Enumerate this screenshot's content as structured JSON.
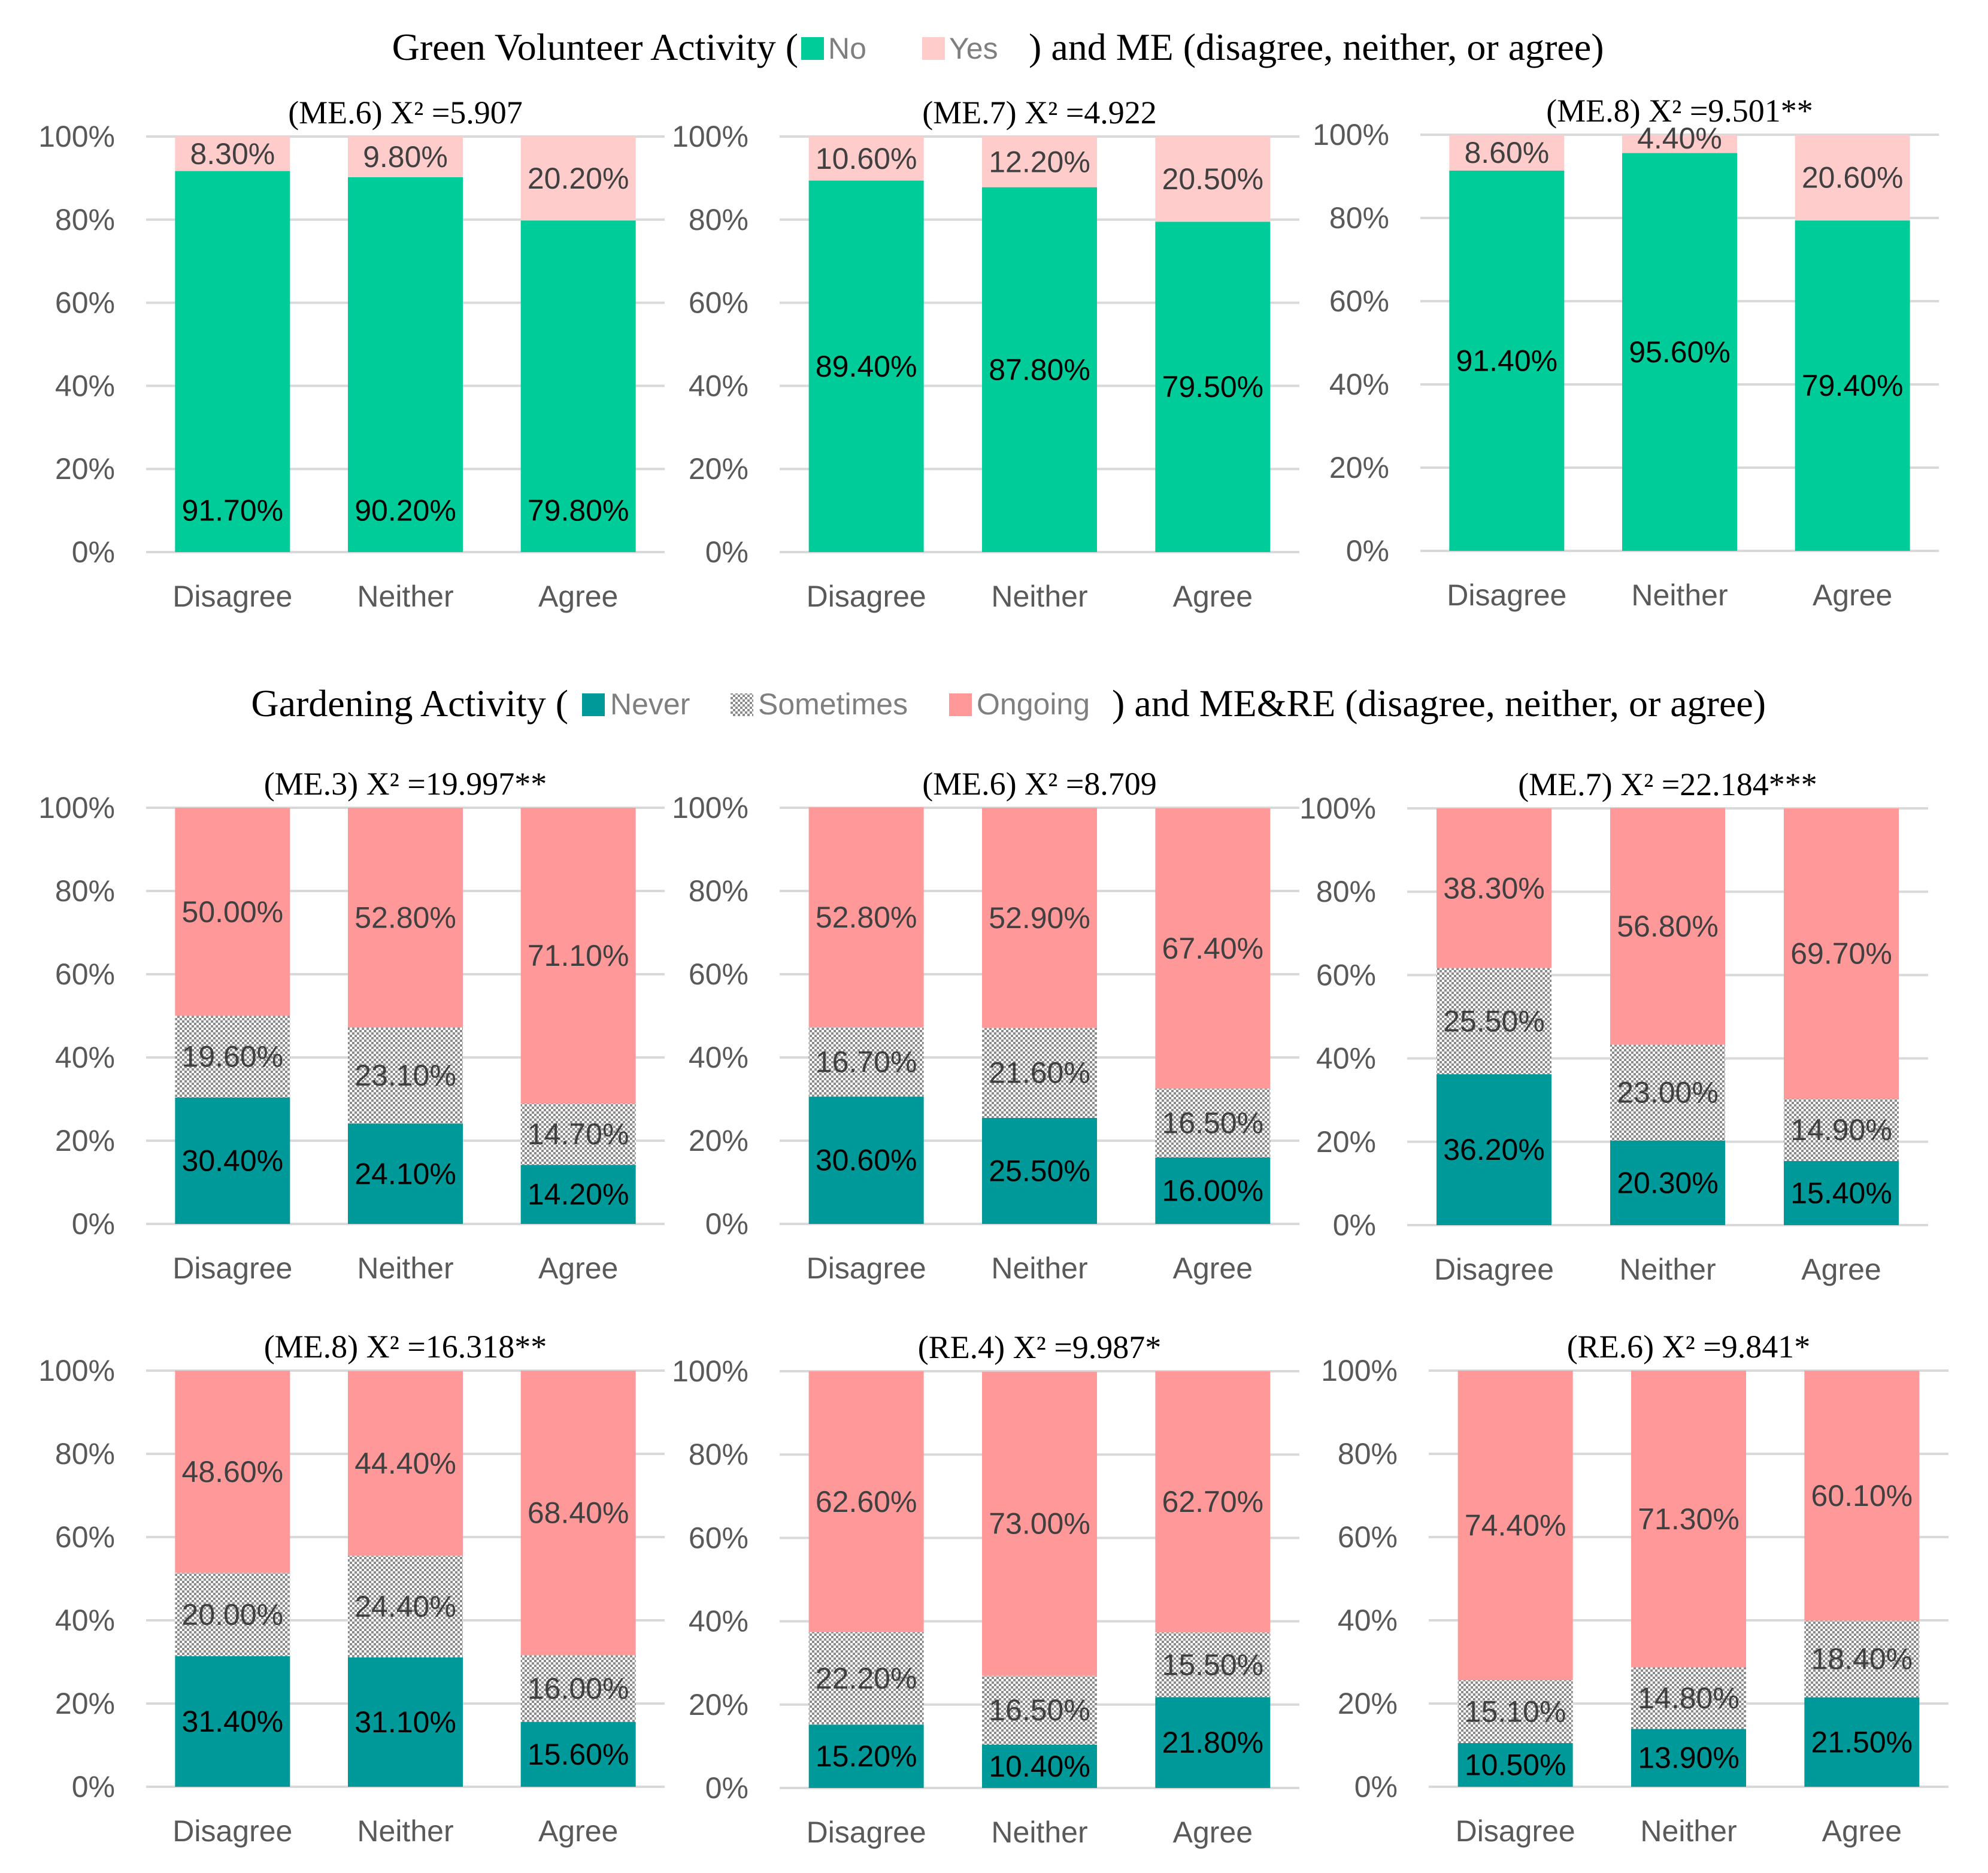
{
  "colors": {
    "no": "#00cc99",
    "yes": "#ffcccc",
    "never": "#009999",
    "sometimes_fg": "#8c8c8c",
    "sometimes_bg": "#ffffff",
    "ongoing": "#ff9999",
    "grid": "#d9d9d9",
    "axis_text": "#595959",
    "label_dark": "#000000",
    "label_grey": "#404040"
  },
  "sections": [
    {
      "title_prefix": "Green Volunteer Activity (",
      "title_suffix": ") and ME (disagree, neither, or agree)",
      "legend": [
        {
          "key": "no",
          "label": "No"
        },
        {
          "key": "yes",
          "label": "Yes"
        }
      ]
    },
    {
      "title_prefix": "Gardening Activity (",
      "title_suffix": ") and ME&RE (disagree, neither, or agree)",
      "legend": [
        {
          "key": "never",
          "label": "Never"
        },
        {
          "key": "sometimes",
          "label": "Sometimes"
        },
        {
          "key": "ongoing",
          "label": "Ongoing"
        }
      ]
    }
  ],
  "chart_data": [
    {
      "type": "bar",
      "stacked": true,
      "section": 0,
      "title": "(ME.6) X² =5.907",
      "categories": [
        "Disagree",
        "Neither",
        "Agree"
      ],
      "yticks": [
        "0%",
        "20%",
        "40%",
        "60%",
        "80%",
        "100%"
      ],
      "ylim": [
        0,
        100
      ],
      "series": [
        {
          "name": "No",
          "key": "no",
          "values": [
            91.7,
            90.2,
            79.8
          ],
          "labels": [
            "91.70%",
            "90.20%",
            "79.80%"
          ]
        },
        {
          "name": "Yes",
          "key": "yes",
          "values": [
            8.3,
            9.8,
            20.2
          ],
          "labels": [
            "8.30%",
            "9.80%",
            "20.20%"
          ]
        }
      ]
    },
    {
      "type": "bar",
      "stacked": true,
      "section": 0,
      "title": "(ME.7) X² =4.922",
      "categories": [
        "Disagree",
        "Neither",
        "Agree"
      ],
      "yticks": [
        "0%",
        "20%",
        "40%",
        "60%",
        "80%",
        "100%"
      ],
      "ylim": [
        0,
        100
      ],
      "series": [
        {
          "name": "No",
          "key": "no",
          "values": [
            89.4,
            87.8,
            79.5
          ],
          "labels": [
            "89.40%",
            "87.80%",
            "79.50%"
          ]
        },
        {
          "name": "Yes",
          "key": "yes",
          "values": [
            10.6,
            12.2,
            20.5
          ],
          "labels": [
            "10.60%",
            "12.20%",
            "20.50%"
          ]
        }
      ]
    },
    {
      "type": "bar",
      "stacked": true,
      "section": 0,
      "title": "(ME.8) X² =9.501**",
      "categories": [
        "Disagree",
        "Neither",
        "Agree"
      ],
      "yticks": [
        "0%",
        "20%",
        "40%",
        "60%",
        "80%",
        "100%"
      ],
      "ylim": [
        0,
        100
      ],
      "series": [
        {
          "name": "No",
          "key": "no",
          "values": [
            91.4,
            95.6,
            79.4
          ],
          "labels": [
            "91.40%",
            "95.60%",
            "79.40%"
          ]
        },
        {
          "name": "Yes",
          "key": "yes",
          "values": [
            8.6,
            4.4,
            20.6
          ],
          "labels": [
            "8.60%",
            "4.40%",
            "20.60%"
          ]
        }
      ]
    },
    {
      "type": "bar",
      "stacked": true,
      "section": 1,
      "title": "(ME.3) X² =19.997**",
      "categories": [
        "Disagree",
        "Neither",
        "Agree"
      ],
      "yticks": [
        "0%",
        "20%",
        "40%",
        "60%",
        "80%",
        "100%"
      ],
      "ylim": [
        0,
        100
      ],
      "series": [
        {
          "name": "Never",
          "key": "never",
          "values": [
            30.4,
            24.1,
            14.2
          ],
          "labels": [
            "30.40%",
            "24.10%",
            "14.20%"
          ]
        },
        {
          "name": "Sometimes",
          "key": "sometimes",
          "values": [
            19.6,
            23.1,
            14.7
          ],
          "labels": [
            "19.60%",
            "23.10%",
            "14.70%"
          ]
        },
        {
          "name": "Ongoing",
          "key": "ongoing",
          "values": [
            50.0,
            52.8,
            71.1
          ],
          "labels": [
            "50.00%",
            "52.80%",
            "71.10%"
          ]
        }
      ]
    },
    {
      "type": "bar",
      "stacked": true,
      "section": 1,
      "title": "(ME.6) X² =8.709",
      "categories": [
        "Disagree",
        "Neither",
        "Agree"
      ],
      "yticks": [
        "0%",
        "20%",
        "40%",
        "60%",
        "80%",
        "100%"
      ],
      "ylim": [
        0,
        100
      ],
      "series": [
        {
          "name": "Never",
          "key": "never",
          "values": [
            30.6,
            25.5,
            16.0
          ],
          "labels": [
            "30.60%",
            "25.50%",
            "16.00%"
          ]
        },
        {
          "name": "Sometimes",
          "key": "sometimes",
          "values": [
            16.7,
            21.6,
            16.5
          ],
          "labels": [
            "16.70%",
            "21.60%",
            "16.50%"
          ]
        },
        {
          "name": "Ongoing",
          "key": "ongoing",
          "values": [
            52.8,
            52.9,
            67.4
          ],
          "labels": [
            "52.80%",
            "52.90%",
            "67.40%"
          ]
        }
      ]
    },
    {
      "type": "bar",
      "stacked": true,
      "section": 1,
      "title": "(ME.7) X² =22.184***",
      "categories": [
        "Disagree",
        "Neither",
        "Agree"
      ],
      "yticks": [
        "0%",
        "20%",
        "40%",
        "60%",
        "80%",
        "100%"
      ],
      "ylim": [
        0,
        100
      ],
      "series": [
        {
          "name": "Never",
          "key": "never",
          "values": [
            36.2,
            20.3,
            15.4
          ],
          "labels": [
            "36.20%",
            "20.30%",
            "15.40%"
          ]
        },
        {
          "name": "Sometimes",
          "key": "sometimes",
          "values": [
            25.5,
            23.0,
            14.9
          ],
          "labels": [
            "25.50%",
            "23.00%",
            "14.90%"
          ]
        },
        {
          "name": "Ongoing",
          "key": "ongoing",
          "values": [
            38.3,
            56.8,
            69.7
          ],
          "labels": [
            "38.30%",
            "56.80%",
            "69.70%"
          ]
        }
      ]
    },
    {
      "type": "bar",
      "stacked": true,
      "section": 1,
      "title": "(ME.8) X² =16.318**",
      "categories": [
        "Disagree",
        "Neither",
        "Agree"
      ],
      "yticks": [
        "0%",
        "20%",
        "40%",
        "60%",
        "80%",
        "100%"
      ],
      "ylim": [
        0,
        100
      ],
      "series": [
        {
          "name": "Never",
          "key": "never",
          "values": [
            31.4,
            31.1,
            15.6
          ],
          "labels": [
            "31.40%",
            "31.10%",
            "15.60%"
          ]
        },
        {
          "name": "Sometimes",
          "key": "sometimes",
          "values": [
            20.0,
            24.4,
            16.0
          ],
          "labels": [
            "20.00%",
            "24.40%",
            "16.00%"
          ]
        },
        {
          "name": "Ongoing",
          "key": "ongoing",
          "values": [
            48.6,
            44.4,
            68.4
          ],
          "labels": [
            "48.60%",
            "44.40%",
            "68.40%"
          ]
        }
      ]
    },
    {
      "type": "bar",
      "stacked": true,
      "section": 1,
      "title": "(RE.4) X² =9.987*",
      "categories": [
        "Disagree",
        "Neither",
        "Agree"
      ],
      "yticks": [
        "0%",
        "20%",
        "40%",
        "60%",
        "80%",
        "100%"
      ],
      "ylim": [
        0,
        100
      ],
      "series": [
        {
          "name": "Never",
          "key": "never",
          "values": [
            15.2,
            10.4,
            21.8
          ],
          "labels": [
            "15.20%",
            "10.40%",
            "21.80%"
          ]
        },
        {
          "name": "Sometimes",
          "key": "sometimes",
          "values": [
            22.2,
            16.5,
            15.5
          ],
          "labels": [
            "22.20%",
            "16.50%",
            "15.50%"
          ]
        },
        {
          "name": "Ongoing",
          "key": "ongoing",
          "values": [
            62.6,
            73.0,
            62.7
          ],
          "labels": [
            "62.60%",
            "73.00%",
            "62.70%"
          ]
        }
      ]
    },
    {
      "type": "bar",
      "stacked": true,
      "section": 1,
      "title": "(RE.6) X² =9.841*",
      "categories": [
        "Disagree",
        "Neither",
        "Agree"
      ],
      "yticks": [
        "0%",
        "20%",
        "40%",
        "60%",
        "80%",
        "100%"
      ],
      "ylim": [
        0,
        100
      ],
      "series": [
        {
          "name": "Never",
          "key": "never",
          "values": [
            10.5,
            13.9,
            21.5
          ],
          "labels": [
            "10.50%",
            "13.90%",
            "21.50%"
          ]
        },
        {
          "name": "Sometimes",
          "key": "sometimes",
          "values": [
            15.1,
            14.8,
            18.4
          ],
          "labels": [
            "15.10%",
            "14.80%",
            "18.40%"
          ]
        },
        {
          "name": "Ongoing",
          "key": "ongoing",
          "values": [
            74.4,
            71.3,
            60.1
          ],
          "labels": [
            "74.40%",
            "71.30%",
            "60.10%"
          ]
        }
      ]
    }
  ]
}
